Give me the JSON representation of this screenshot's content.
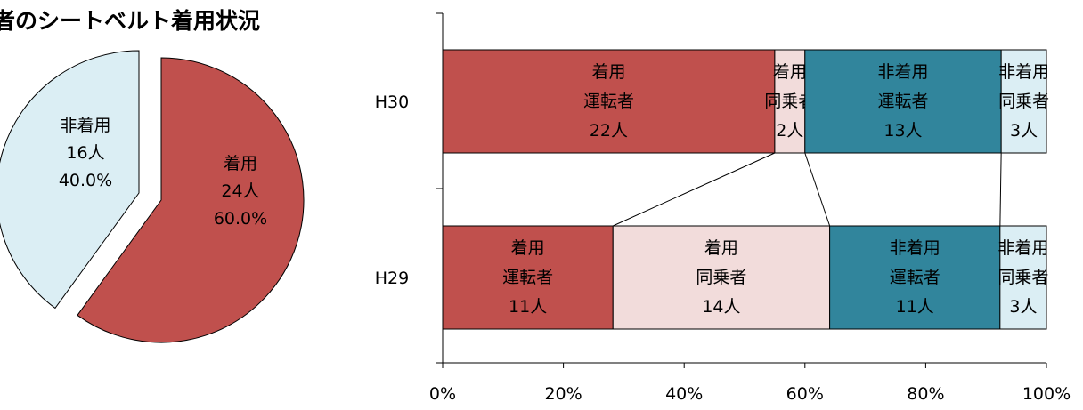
{
  "title": "者のシートベルト着用状況",
  "chart_data": [
    {
      "type": "pie",
      "slices": [
        {
          "label": "着用",
          "count": "24人",
          "percent": "60.0%",
          "value": 60.0,
          "color": "#c0504d"
        },
        {
          "label": "非着用",
          "count": "16人",
          "percent": "40.0%",
          "value": 40.0,
          "color": "#dbeef4"
        }
      ]
    },
    {
      "type": "bar",
      "orientation": "horizontal",
      "stacked": "percent",
      "categories": [
        "H30",
        "H29"
      ],
      "series": [
        {
          "lines": [
            "着用",
            "運転者"
          ],
          "values": [
            22,
            11
          ],
          "labels": [
            "22人",
            "11人"
          ],
          "color": "#c0504d"
        },
        {
          "lines": [
            "着用",
            "同乗者"
          ],
          "values": [
            2,
            14
          ],
          "labels": [
            "2人",
            "14人"
          ],
          "color": "#f2dcdb"
        },
        {
          "lines": [
            "非着用",
            "運転者"
          ],
          "values": [
            13,
            11
          ],
          "labels": [
            "13人",
            "11人"
          ],
          "color": "#31859c"
        },
        {
          "lines": [
            "非着用",
            "同乗者"
          ],
          "values": [
            3,
            3
          ],
          "labels": [
            "3人",
            "3人"
          ],
          "color": "#dbeef4"
        }
      ],
      "xlim": [
        0,
        100
      ],
      "xticks": [
        "0%",
        "20%",
        "40%",
        "60%",
        "80%",
        "100%"
      ]
    }
  ]
}
